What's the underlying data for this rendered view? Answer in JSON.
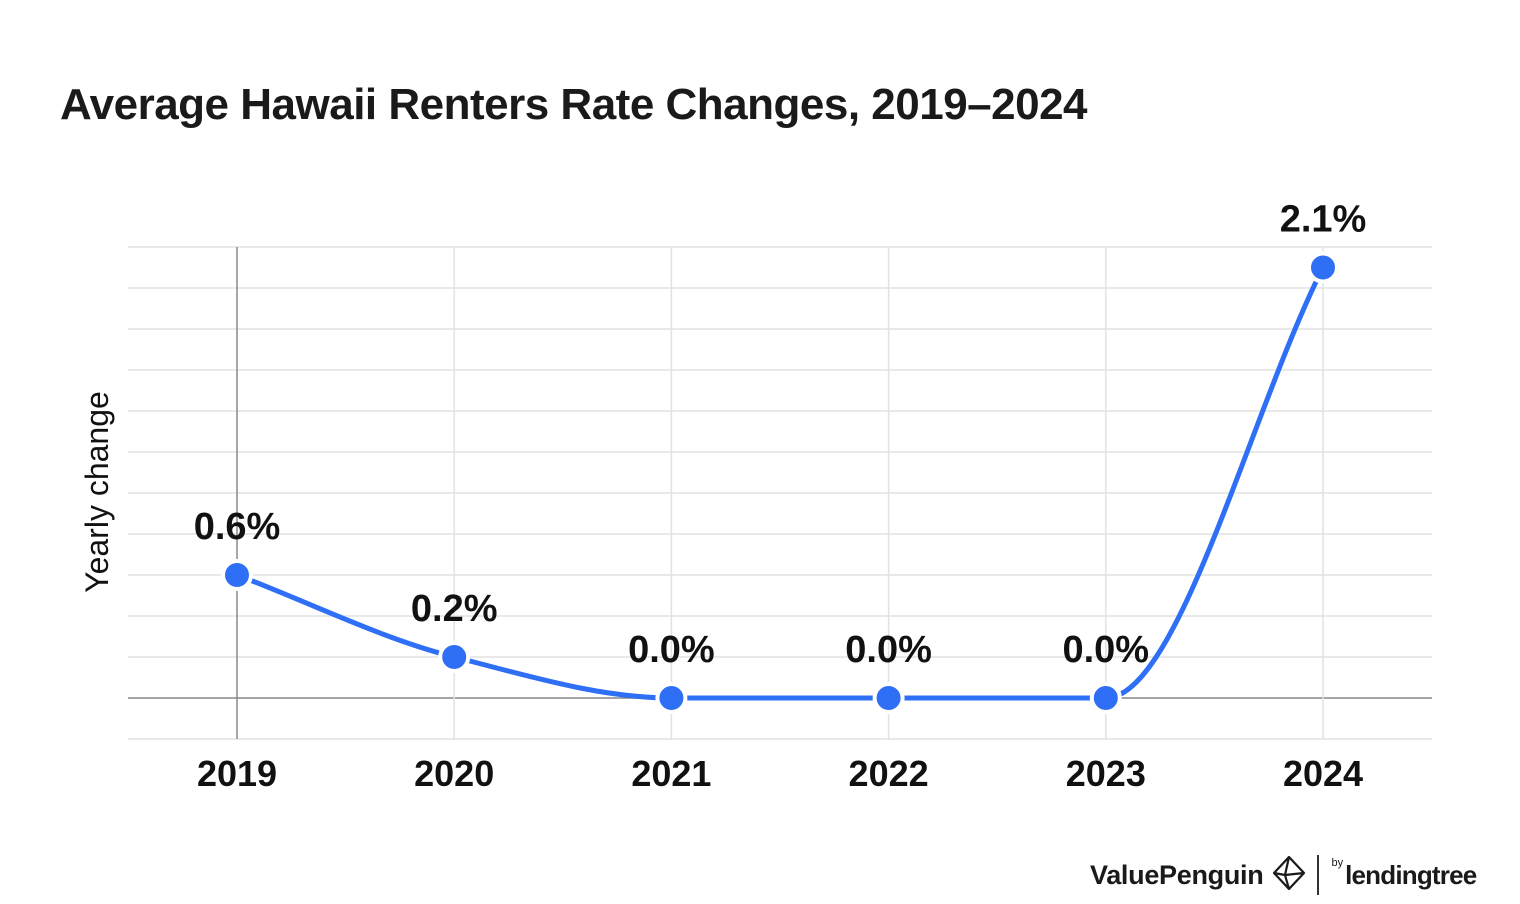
{
  "chart_data": {
    "type": "line",
    "title": "Average Hawaii Renters Rate Changes, 2019–2024",
    "ylabel": "Yearly change",
    "xlabel": "",
    "categories": [
      "2019",
      "2020",
      "2021",
      "2022",
      "2023",
      "2024"
    ],
    "series": [
      {
        "values": [
          0.6,
          0.2,
          0.0,
          0.0,
          0.0,
          2.1
        ],
        "labels": [
          "0.6%",
          "0.2%",
          "0.0%",
          "0.0%",
          "0.0%",
          "2.1%"
        ],
        "color": "#2f6ff5"
      }
    ],
    "ylim": [
      -0.2,
      2.2
    ],
    "grid": true,
    "legend": "none"
  },
  "branding": {
    "brand_name": "ValuePenguin",
    "by": "by",
    "partner": "lendingtree"
  }
}
